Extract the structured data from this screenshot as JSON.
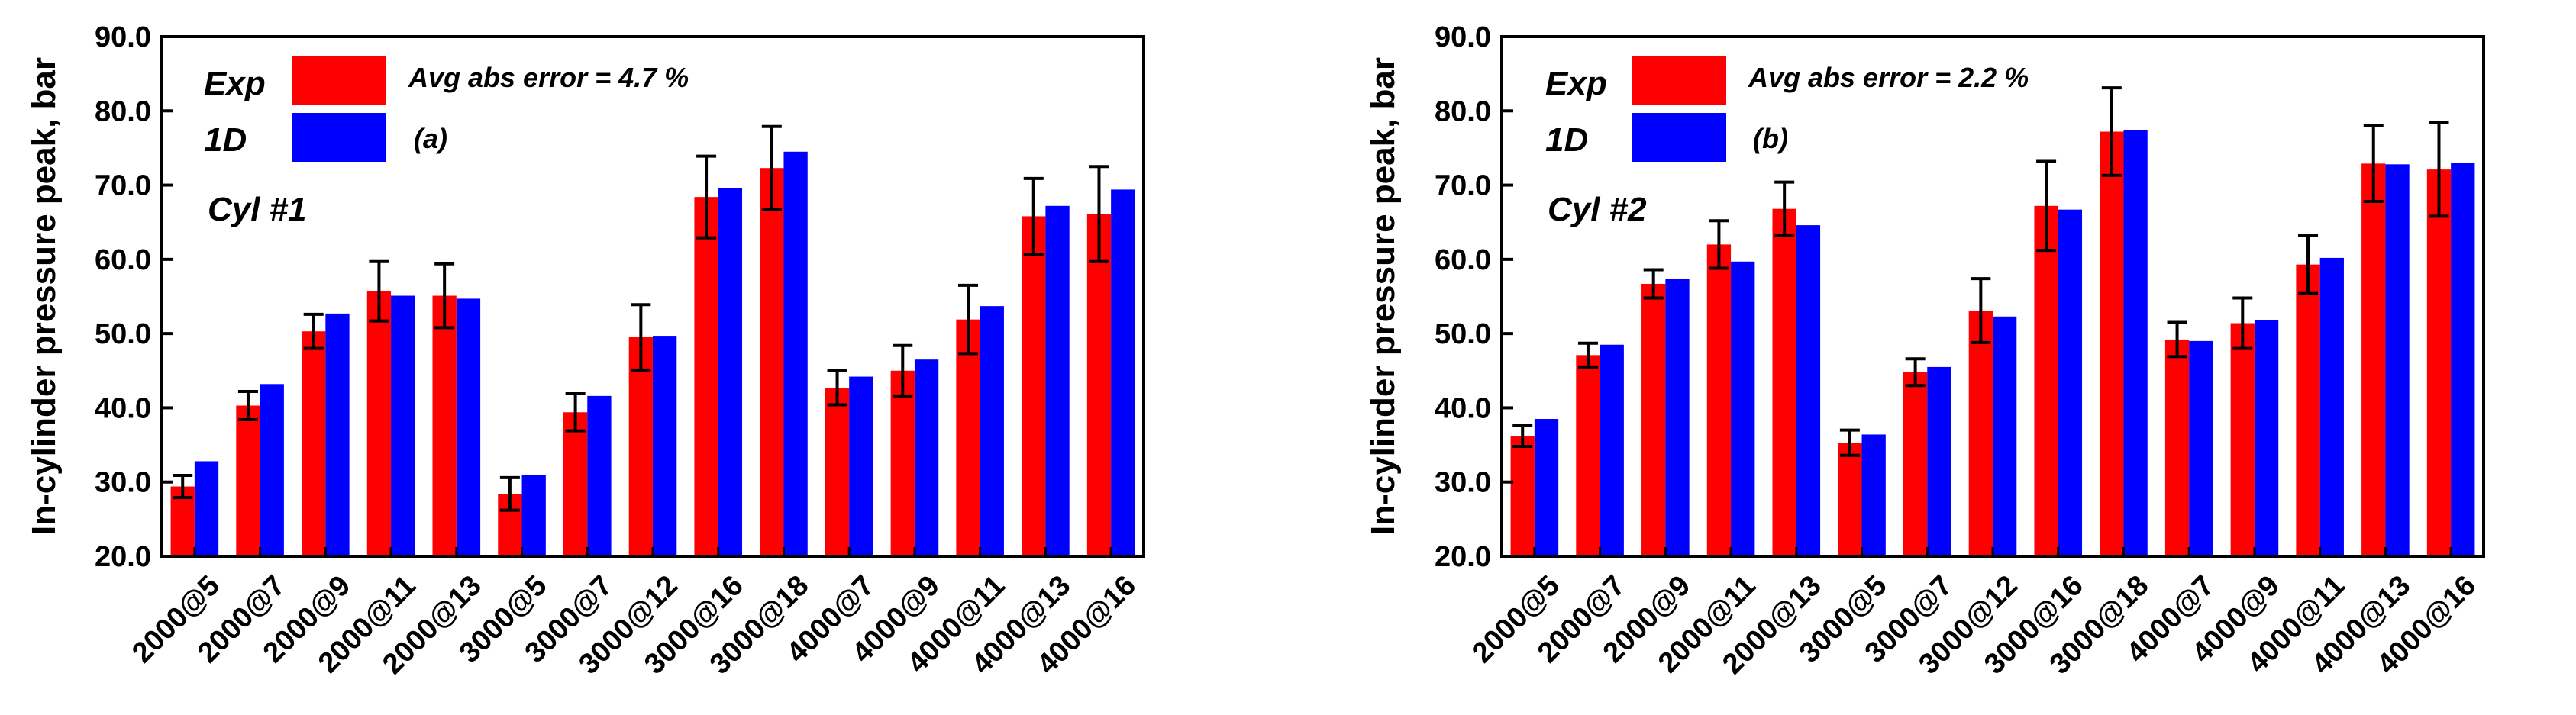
{
  "chart_data": [
    {
      "type": "bar",
      "ylabel": "In-cylinder pressure peak, bar",
      "ylim": [
        20,
        90
      ],
      "yticks": [
        "20.0",
        "30.0",
        "40.0",
        "50.0",
        "60.0",
        "70.0",
        "80.0",
        "90.0"
      ],
      "categories": [
        "2000@5",
        "2000@7",
        "2000@9",
        "2000@11",
        "2000@13",
        "3000@5",
        "3000@7",
        "3000@12",
        "3000@16",
        "3000@18",
        "4000@7",
        "4000@9",
        "4000@11",
        "4000@13",
        "4000@16"
      ],
      "series": [
        {
          "name": "Exp",
          "color": "#ff0000",
          "values": [
            29.4,
            40.3,
            50.3,
            55.7,
            55.1,
            28.4,
            39.4,
            49.5,
            68.4,
            72.3,
            42.7,
            45.0,
            51.9,
            65.8,
            66.1
          ],
          "error": [
            1.5,
            1.9,
            2.3,
            4.0,
            4.3,
            2.2,
            2.5,
            4.4,
            5.5,
            5.6,
            2.3,
            3.4,
            4.6,
            5.1,
            6.4
          ]
        },
        {
          "name": "1D",
          "color": "#0000ff",
          "values": [
            32.8,
            43.2,
            52.7,
            55.1,
            54.7,
            31.0,
            41.6,
            49.7,
            69.6,
            74.5,
            44.2,
            46.5,
            53.7,
            67.2,
            69.4
          ]
        }
      ],
      "legend": [
        "Exp",
        "1D"
      ],
      "note": "Avg abs error = 4.7 %",
      "panel_label": "(a)",
      "cylinder_label": "Cyl #1"
    },
    {
      "type": "bar",
      "ylabel": "In-cylinder pressure peak, bar",
      "ylim": [
        20,
        90
      ],
      "yticks": [
        "20.0",
        "30.0",
        "40.0",
        "50.0",
        "60.0",
        "70.0",
        "80.0",
        "90.0"
      ],
      "categories": [
        "2000@5",
        "2000@7",
        "2000@9",
        "2000@11",
        "2000@13",
        "3000@5",
        "3000@7",
        "3000@12",
        "3000@16",
        "3000@18",
        "4000@7",
        "4000@9",
        "4000@11",
        "4000@13",
        "4000@16"
      ],
      "series": [
        {
          "name": "Exp",
          "color": "#ff0000",
          "values": [
            36.2,
            47.1,
            56.7,
            62.0,
            66.8,
            35.3,
            44.8,
            53.1,
            67.2,
            77.2,
            49.2,
            51.4,
            59.3,
            72.9,
            72.1
          ],
          "error": [
            1.4,
            1.6,
            1.9,
            3.2,
            3.6,
            1.7,
            1.8,
            4.3,
            6.0,
            5.9,
            2.3,
            3.4,
            3.9,
            5.1,
            6.3
          ]
        },
        {
          "name": "1D",
          "color": "#0000ff",
          "values": [
            38.5,
            48.5,
            57.4,
            59.7,
            64.6,
            36.4,
            45.5,
            52.3,
            66.7,
            77.4,
            49.0,
            51.8,
            60.2,
            72.8,
            73.0
          ]
        }
      ],
      "legend": [
        "Exp",
        "1D"
      ],
      "note": "Avg abs error = 2.2 %",
      "panel_label": "(b)",
      "cylinder_label": "Cyl #2"
    }
  ]
}
